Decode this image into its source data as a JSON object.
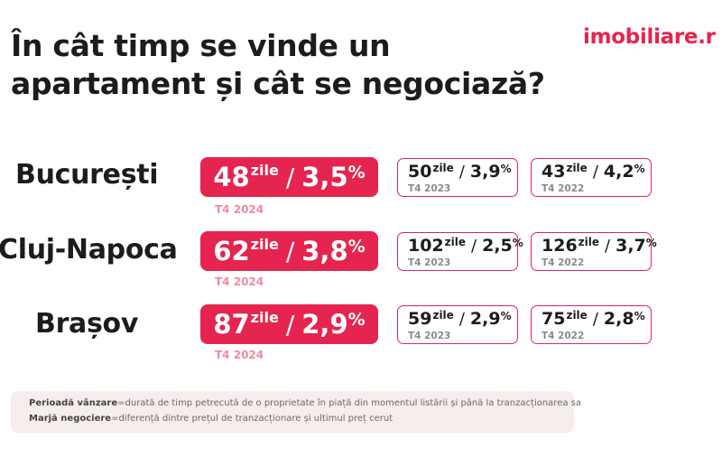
{
  "header": {
    "title": "În cât timp se vinde un apartament și cât se negociază?",
    "brand": "imobiliare.r"
  },
  "rows": [
    {
      "city": "București",
      "current": {
        "days": "48",
        "days_unit": "zile",
        "sep": "/",
        "margin": "3,5",
        "pct": "%",
        "period": "T4 2024"
      },
      "prev1": {
        "days": "50",
        "days_unit": "zile",
        "sep": "/",
        "margin": "3,9",
        "pct": "%",
        "period": "T4 2023"
      },
      "prev2": {
        "days": "43",
        "days_unit": "zile",
        "sep": "/",
        "margin": "4,2",
        "pct": "%",
        "period": "T4 2022"
      }
    },
    {
      "city": "Cluj-Napoca",
      "current": {
        "days": "62",
        "days_unit": "zile",
        "sep": "/",
        "margin": "3,8",
        "pct": "%",
        "period": "T4 2024"
      },
      "prev1": {
        "days": "102",
        "days_unit": "zile",
        "sep": "/",
        "margin": "2,5",
        "pct": "%",
        "period": "T4 2023"
      },
      "prev2": {
        "days": "126",
        "days_unit": "zile",
        "sep": "/",
        "margin": "3,7",
        "pct": "%",
        "period": "T4 2022"
      }
    },
    {
      "city": "Brașov",
      "current": {
        "days": "87",
        "days_unit": "zile",
        "sep": "/",
        "margin": "2,9",
        "pct": "%",
        "period": "T4 2024"
      },
      "prev1": {
        "days": "59",
        "days_unit": "zile",
        "sep": "/",
        "margin": "2,9",
        "pct": "%",
        "period": "T4 2023"
      },
      "prev2": {
        "days": "75",
        "days_unit": "zile",
        "sep": "/",
        "margin": "2,8",
        "pct": "%",
        "period": "T4 2022"
      }
    }
  ],
  "notes": [
    {
      "term": "Perioadă vânzare",
      "definition": "=durată de timp petrecută de o proprietate în piață din momentul listării și până la tranzacționarea sa"
    },
    {
      "term": "Marjă negociere",
      "definition": "=diferență dintre prețul de tranzacționare și ultimul preț cerut"
    }
  ],
  "colors": {
    "accent": "#e5244f",
    "period_current": "#f08a9f",
    "note_bg": "#f6eded"
  }
}
